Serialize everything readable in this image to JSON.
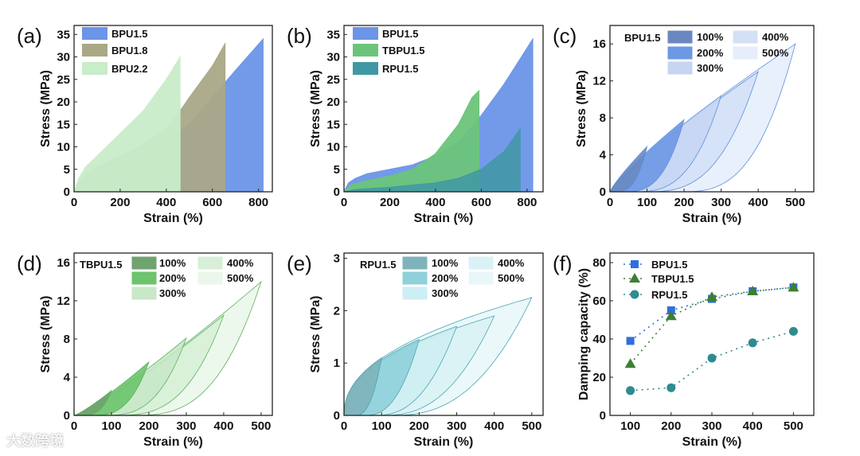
{
  "watermark": "大数跨境",
  "chart_data": [
    {
      "id": "a",
      "panel_label": "(a)",
      "type": "area",
      "xlabel": "Strain (%)",
      "ylabel": "Stress (MPa)",
      "xlim": [
        0,
        860
      ],
      "ylim": [
        0,
        37
      ],
      "xticks": [
        0,
        200,
        400,
        600,
        800
      ],
      "yticks": [
        0,
        5,
        10,
        15,
        20,
        25,
        30,
        35
      ],
      "legend_position": "top-left",
      "series": [
        {
          "name": "BPU1.5",
          "color": "#6b95e8",
          "x": [
            0,
            20,
            50,
            100,
            200,
            300,
            400,
            500,
            600,
            700,
            820
          ],
          "y": [
            0,
            2,
            3,
            4,
            6,
            8,
            11,
            15,
            21,
            27,
            34
          ]
        },
        {
          "name": "BPU1.8",
          "color": "#a9a887",
          "x": [
            0,
            20,
            50,
            100,
            200,
            300,
            400,
            460,
            500,
            600,
            655
          ],
          "y": [
            0,
            2,
            4,
            5.5,
            8,
            10.5,
            14,
            18,
            21,
            28,
            33
          ]
        },
        {
          "name": "BPU2.2",
          "color": "#c9ecc9",
          "x": [
            0,
            20,
            50,
            100,
            200,
            300,
            400,
            460
          ],
          "y": [
            0,
            3,
            5.5,
            8,
            13,
            18,
            25,
            30
          ]
        }
      ]
    },
    {
      "id": "b",
      "panel_label": "(b)",
      "type": "area",
      "xlabel": "Strain (%)",
      "ylabel": "Stress (MPa)",
      "xlim": [
        0,
        870
      ],
      "ylim": [
        0,
        37
      ],
      "xticks": [
        0,
        200,
        400,
        600,
        800
      ],
      "yticks": [
        0,
        5,
        10,
        15,
        20,
        25,
        30,
        35
      ],
      "legend_position": "top-left",
      "series": [
        {
          "name": "BPU1.5",
          "color": "#6b95e8",
          "x": [
            0,
            20,
            50,
            100,
            200,
            300,
            400,
            500,
            600,
            700,
            825
          ],
          "y": [
            0,
            2,
            3,
            4,
            5,
            6,
            8,
            11,
            17,
            24,
            34
          ]
        },
        {
          "name": "TBPU1.5",
          "color": "#6cc47a",
          "x": [
            0,
            30,
            100,
            200,
            300,
            400,
            500,
            560,
            590
          ],
          "y": [
            0,
            1.5,
            2.5,
            3.5,
            5,
            8.5,
            15,
            21,
            22.5
          ]
        },
        {
          "name": "RPU1.5",
          "color": "#3f98a4",
          "x": [
            0,
            50,
            200,
            400,
            500,
            600,
            700,
            770
          ],
          "y": [
            0,
            0.5,
            1,
            2,
            3,
            5,
            9,
            14
          ]
        }
      ]
    },
    {
      "id": "c",
      "panel_label": "(c)",
      "type": "area",
      "title": "BPU1.5",
      "xlabel": "Strain (%)",
      "ylabel": "Stress (MPa)",
      "xlim": [
        0,
        550
      ],
      "ylim": [
        0,
        18
      ],
      "xticks": [
        0,
        100,
        200,
        300,
        400,
        500
      ],
      "yticks": [
        0,
        4,
        8,
        12,
        16
      ],
      "legend_position": "top-right",
      "stroke": "#5e8ede",
      "load_exp": 0.85,
      "unload_exp": 3,
      "loops": [
        {
          "name": "100%",
          "color": "#6a88c0",
          "max_strain": 100,
          "peak_stress": 4.9,
          "residual_strain": 12
        },
        {
          "name": "200%",
          "color": "#6c98e6",
          "max_strain": 200,
          "peak_stress": 7.8,
          "residual_strain": 35
        },
        {
          "name": "300%",
          "color": "#c6d6f2",
          "max_strain": 300,
          "peak_stress": 10.4,
          "residual_strain": 60
        },
        {
          "name": "400%",
          "color": "#d4e0f6",
          "max_strain": 400,
          "peak_stress": 13,
          "residual_strain": 90
        },
        {
          "name": "500%",
          "color": "#e6eefb",
          "max_strain": 500,
          "peak_stress": 16,
          "residual_strain": 185
        }
      ]
    },
    {
      "id": "d",
      "panel_label": "(d)",
      "type": "area",
      "title": "TBPU1.5",
      "xlabel": "Strain (%)",
      "ylabel": "Stress (MPa)",
      "xlim": [
        0,
        530
      ],
      "ylim": [
        0,
        17
      ],
      "xticks": [
        0,
        100,
        200,
        300,
        400,
        500
      ],
      "yticks": [
        0,
        4,
        8,
        12,
        16
      ],
      "legend_position": "top-right",
      "stroke": "#5fae5f",
      "load_exp": 1.2,
      "unload_exp": 3,
      "loops": [
        {
          "name": "100%",
          "color": "#6fa36f",
          "max_strain": 100,
          "peak_stress": 2.6,
          "residual_strain": 20
        },
        {
          "name": "200%",
          "color": "#6cc46c",
          "max_strain": 200,
          "peak_stress": 5.6,
          "residual_strain": 45
        },
        {
          "name": "300%",
          "color": "#c8e8c8",
          "max_strain": 300,
          "peak_stress": 8.1,
          "residual_strain": 75
        },
        {
          "name": "400%",
          "color": "#d6efd6",
          "max_strain": 400,
          "peak_stress": 10.5,
          "residual_strain": 105
        },
        {
          "name": "500%",
          "color": "#ebf7eb",
          "max_strain": 500,
          "peak_stress": 14,
          "residual_strain": 150
        }
      ]
    },
    {
      "id": "e",
      "panel_label": "(e)",
      "type": "area",
      "title": "RPU1.5",
      "xlabel": "Strain (%)",
      "ylabel": "Stress (MPa)",
      "xlim": [
        0,
        530
      ],
      "ylim": [
        0,
        3.1
      ],
      "xticks": [
        0,
        100,
        200,
        300,
        400,
        500
      ],
      "yticks": [
        0,
        1,
        2,
        3
      ],
      "legend_position": "top-right",
      "stroke": "#4aa6b0",
      "load_exp": 0.45,
      "unload_exp": 2.5,
      "loops": [
        {
          "name": "100%",
          "color": "#7eb3bb",
          "max_strain": 100,
          "peak_stress": 1.1,
          "residual_strain": 30
        },
        {
          "name": "200%",
          "color": "#8fd0da",
          "max_strain": 200,
          "peak_stress": 1.45,
          "residual_strain": 55
        },
        {
          "name": "300%",
          "color": "#cdeef2",
          "max_strain": 300,
          "peak_stress": 1.7,
          "residual_strain": 80
        },
        {
          "name": "400%",
          "color": "#daf2f5",
          "max_strain": 400,
          "peak_stress": 1.9,
          "residual_strain": 100
        },
        {
          "name": "500%",
          "color": "#e8f7f9",
          "max_strain": 500,
          "peak_stress": 2.25,
          "residual_strain": 125
        }
      ]
    },
    {
      "id": "f",
      "panel_label": "(f)",
      "type": "scatter",
      "xlabel": "Strain (%)",
      "ylabel": "Damping capacity (%)",
      "xlim": [
        50,
        550
      ],
      "ylim": [
        0,
        85
      ],
      "xticks": [
        100,
        200,
        300,
        400,
        500
      ],
      "yticks": [
        0,
        20,
        40,
        60,
        80
      ],
      "legend_position": "top-left",
      "x": [
        100,
        200,
        300,
        400,
        500
      ],
      "series": [
        {
          "name": "BPU1.5",
          "marker": "square",
          "color": "#2f6fdc",
          "values": [
            39,
            55,
            61,
            65,
            67
          ]
        },
        {
          "name": "TBPU1.5",
          "marker": "triangle",
          "color": "#3d7f33",
          "values": [
            27,
            52,
            62,
            65,
            67
          ]
        },
        {
          "name": "RPU1.5",
          "marker": "circle",
          "color": "#2f8b8f",
          "values": [
            13,
            14.5,
            30,
            38,
            44
          ]
        }
      ]
    }
  ]
}
